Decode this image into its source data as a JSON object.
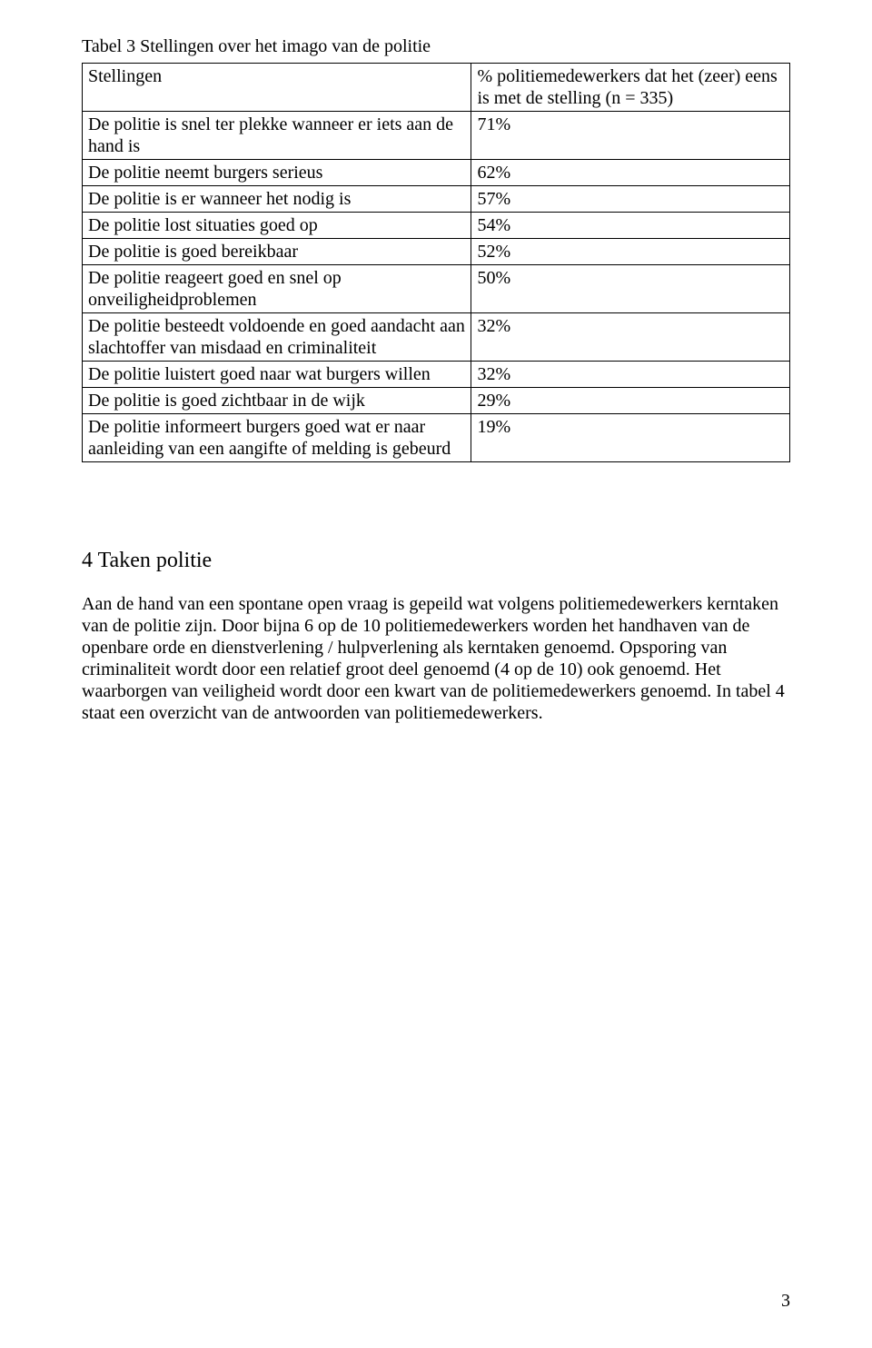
{
  "table": {
    "title": "Tabel 3 Stellingen over het imago van de politie",
    "header": {
      "left": "Stellingen",
      "right": "%  politiemedewerkers dat het (zeer) eens is met de stelling (n = 335)"
    },
    "rows": [
      {
        "stelling": "De politie is snel ter plekke wanneer er iets aan de hand is",
        "value": "71%"
      },
      {
        "stelling": "De politie neemt burgers serieus",
        "value": "62%"
      },
      {
        "stelling": "De politie is er wanneer het nodig is",
        "value": "57%"
      },
      {
        "stelling": "De politie lost situaties goed op",
        "value": "54%"
      },
      {
        "stelling": "De politie is goed bereikbaar",
        "value": "52%"
      },
      {
        "stelling": "De politie reageert goed en snel op onveiligheidproblemen",
        "value": "50%"
      },
      {
        "stelling": "De politie besteedt voldoende en goed aandacht aan slachtoffer van misdaad en criminaliteit",
        "value": "32%"
      },
      {
        "stelling": "De politie luistert goed naar wat burgers willen",
        "value": "32%"
      },
      {
        "stelling": "De politie is goed zichtbaar in de wijk",
        "value": "29%"
      },
      {
        "stelling": "De politie informeert burgers goed wat er naar aanleiding van een aangifte of melding is gebeurd",
        "value": "19%"
      }
    ]
  },
  "section": {
    "heading": "4 Taken politie",
    "paragraph": "Aan de hand van een spontane open vraag is gepeild wat volgens politiemedewerkers kerntaken van de politie zijn. Door bijna 6 op de 10 politiemedewerkers worden het handhaven van de openbare orde en dienstverlening / hulpverlening als kerntaken genoemd. Opsporing van criminaliteit wordt door een relatief groot deel genoemd (4 op de 10) ook genoemd. Het waarborgen van veiligheid wordt door een kwart van de politiemedewerkers genoemd. In tabel 4 staat een overzicht van de antwoorden van politiemedewerkers."
  },
  "pageNumber": "3"
}
